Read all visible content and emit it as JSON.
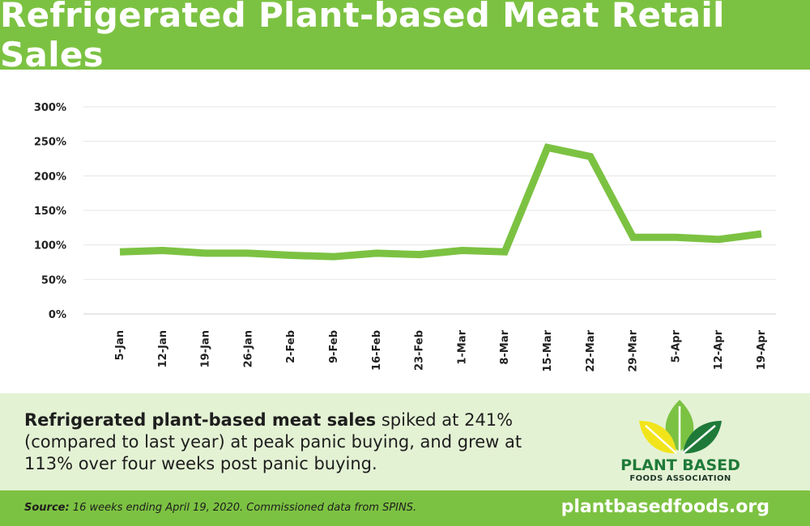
{
  "header": {
    "title": "Refrigerated Plant-based Meat Retail Sales"
  },
  "chart_data": {
    "type": "line",
    "title": "",
    "xlabel": "",
    "ylabel": "",
    "categories": [
      "5-Jan",
      "12-Jan",
      "19-Jan",
      "26-Jan",
      "2-Feb",
      "9-Feb",
      "16-Feb",
      "23-Feb",
      "1-Mar",
      "8-Mar",
      "15-Mar",
      "22-Mar",
      "29-Mar",
      "5-Apr",
      "12-Apr",
      "19-Apr"
    ],
    "series": [
      {
        "name": "",
        "values": [
          90,
          92,
          88,
          88,
          85,
          83,
          88,
          86,
          92,
          90,
          241,
          228,
          111,
          111,
          108,
          116
        ]
      }
    ],
    "ylim": [
      0,
      300
    ],
    "yticks": [
      0,
      50,
      100,
      150,
      200,
      250,
      300
    ],
    "ytick_labels": [
      "0%",
      "50%",
      "100%",
      "150%",
      "200%",
      "250%",
      "300%"
    ],
    "grid": true,
    "line_color": "#7cc242"
  },
  "summary": {
    "bold": "Refrigerated plant-based meat sales",
    "rest": " spiked at 241% (compared to last year) at peak panic buying, and grew at 113% over four weeks post panic buying."
  },
  "logo": {
    "line1": "PLANT BASED",
    "line2": "FOODS ASSOCIATION"
  },
  "footer": {
    "source_label": "Source:",
    "source_text": " 16 weeks ending April 19, 2020. Commissioned data from SPINS.",
    "website": "plantbasedfoods.org"
  },
  "colors": {
    "brand_green": "#7cc242",
    "panel_bg": "#e4f2d4",
    "logo_dark_green": "#1f7a39"
  }
}
